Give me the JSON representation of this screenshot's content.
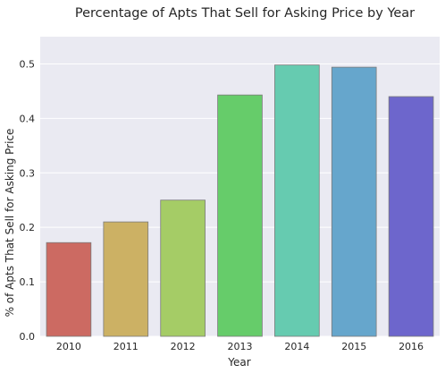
{
  "chart_data": {
    "type": "bar",
    "title": "Percentage of Apts That Sell for Asking Price by Year",
    "xlabel": "Year",
    "ylabel": "% of Apts That Sell for Asking Price",
    "categories": [
      "2010",
      "2011",
      "2012",
      "2013",
      "2014",
      "2015",
      "2016"
    ],
    "values": [
      0.172,
      0.21,
      0.25,
      0.443,
      0.498,
      0.494,
      0.44
    ],
    "colors": [
      "#cc6a62",
      "#ccb164",
      "#a5cc66",
      "#66cc6a",
      "#66cbb0",
      "#66a6cc",
      "#6d66cc"
    ],
    "yticks": [
      "0.0",
      "0.1",
      "0.2",
      "0.3",
      "0.4",
      "0.5"
    ],
    "ylim": [
      0,
      0.55
    ],
    "grid": true,
    "background": "#eaeaf2"
  }
}
